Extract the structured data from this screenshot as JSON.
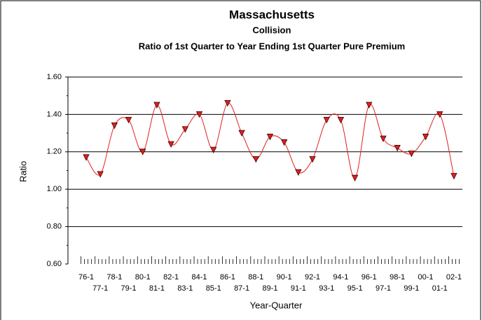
{
  "chart_data": {
    "type": "line",
    "title": "Massachusetts",
    "subtitle": "Collision",
    "subtitle2": "Ratio of 1st Quarter to Year Ending 1st Quarter Pure Premium",
    "y_label": "Ratio",
    "x_label": "Year-Quarter",
    "categories": [
      "76-1",
      "77-1",
      "78-1",
      "79-1",
      "80-1",
      "81-1",
      "82-1",
      "83-1",
      "84-1",
      "85-1",
      "86-1",
      "87-1",
      "88-1",
      "89-1",
      "90-1",
      "91-1",
      "92-1",
      "93-1",
      "94-1",
      "95-1",
      "96-1",
      "97-1",
      "98-1",
      "99-1",
      "00-1",
      "01-1",
      "02-1"
    ],
    "series": [
      {
        "name": "Ratio",
        "color": "#e02020",
        "values": [
          1.17,
          1.08,
          1.34,
          1.37,
          1.2,
          1.45,
          1.24,
          1.32,
          1.4,
          1.21,
          1.46,
          1.3,
          1.16,
          1.28,
          1.25,
          1.09,
          1.16,
          1.37,
          1.37,
          1.06,
          1.45,
          1.27,
          1.22,
          1.19,
          1.28,
          1.4,
          1.07
        ]
      }
    ],
    "ylim": [
      0.6,
      1.6
    ],
    "yticks": [
      {
        "value": 0.6,
        "label": "0.60"
      },
      {
        "value": 0.8,
        "label": "0.80"
      },
      {
        "value": 1.0,
        "label": "1.00"
      },
      {
        "value": 1.2,
        "label": "1.20"
      },
      {
        "value": 1.4,
        "label": "1.40"
      },
      {
        "value": 1.6,
        "label": "1.60"
      }
    ],
    "grid": true
  }
}
